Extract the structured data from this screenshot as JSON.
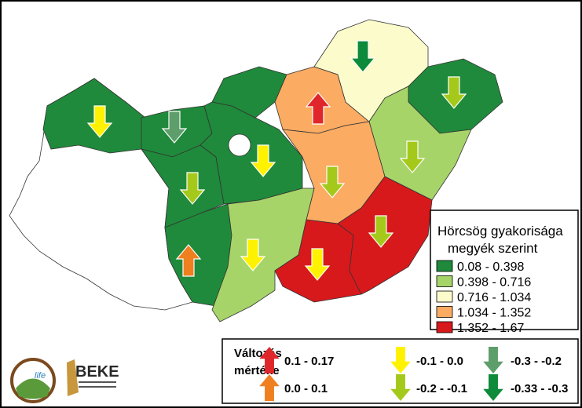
{
  "legend": {
    "title_lines": [
      "Hörcsög gyakorisága",
      "megyék szerint"
    ],
    "classes": [
      {
        "label": "0.08 - 0.398",
        "color": "#1f8a3b"
      },
      {
        "label": "0.398 - 0.716",
        "color": "#a6d469"
      },
      {
        "label": "0.716 - 1.034",
        "color": "#fcfbcb"
      },
      {
        "label": "1.034 - 1.352",
        "color": "#fbab62"
      },
      {
        "label": "1.352 - 1.67",
        "color": "#d7191c"
      }
    ]
  },
  "change_legend": {
    "title_lines": [
      "Változás",
      "mértéke"
    ],
    "items": [
      {
        "label": "0.1 - 0.17",
        "color": "#e0262b",
        "direction": "up"
      },
      {
        "label": "0.0 - 0.1",
        "color": "#f07f1f",
        "direction": "up"
      },
      {
        "label": "-0.1 - 0.0",
        "color": "#fff200",
        "direction": "down"
      },
      {
        "label": "-0.2 - -0.1",
        "color": "#a5c91b",
        "direction": "down"
      },
      {
        "label": "-0.3 - -0.2",
        "color": "#5e9e6a",
        "direction": "down"
      },
      {
        "label": "-0.33 - -0.3",
        "color": "#0d8a3a",
        "direction": "down"
      }
    ]
  },
  "logos": [
    "life",
    "BEKE"
  ]
}
